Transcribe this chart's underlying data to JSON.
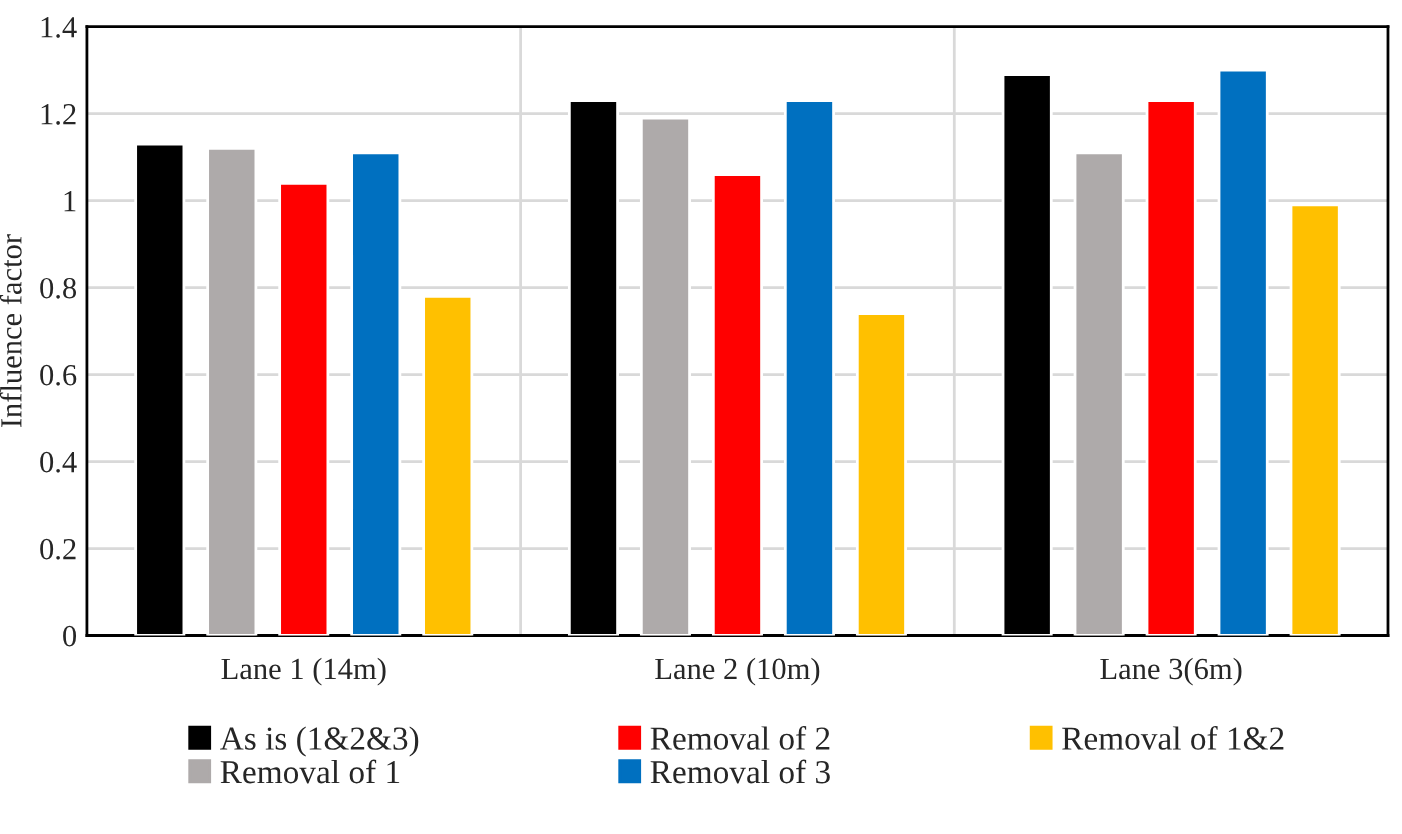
{
  "chart_data": {
    "type": "bar",
    "ylabel": "Influence factor",
    "categories": [
      "Lane 1 (14m)",
      "Lane 2 (10m)",
      "Lane 3(6m)"
    ],
    "series": [
      {
        "name": "As is (1&2&3)",
        "color": "#000000",
        "values": [
          1.13,
          1.23,
          1.29
        ]
      },
      {
        "name": "Removal of 1",
        "color": "#aeaaaa",
        "values": [
          1.12,
          1.19,
          1.11
        ]
      },
      {
        "name": "Removal of 2",
        "color": "#ff0000",
        "values": [
          1.04,
          1.06,
          1.23
        ]
      },
      {
        "name": "Removal of 3",
        "color": "#0070c0",
        "values": [
          1.11,
          1.23,
          1.3
        ]
      },
      {
        "name": "Removal of 1&2",
        "color": "#ffc000",
        "values": [
          0.78,
          0.74,
          0.99
        ]
      }
    ],
    "ylim": [
      0,
      1.4
    ],
    "yticks": [
      0,
      {
        "value": 0.2,
        "label": "0.2"
      },
      {
        "value": 0.4,
        "label": "0.4"
      },
      {
        "value": 0.6,
        "label": "0.6"
      },
      {
        "value": 0.8,
        "label": "0.8"
      },
      1,
      {
        "value": 1.2,
        "label": "1.2"
      },
      {
        "value": 1.4,
        "label": "1.4"
      }
    ],
    "grid": true,
    "legend": "bottom"
  }
}
